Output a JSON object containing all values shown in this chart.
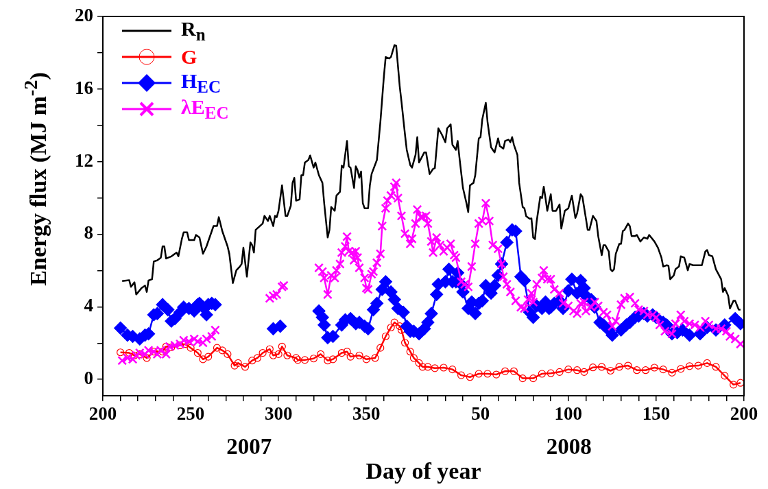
{
  "chart_data": {
    "type": "line",
    "xlabel": "Day of year",
    "ylabel": "Energy flux (MJ m$^{-2}$)",
    "annotations": [
      "2007",
      "2008"
    ],
    "xlim": [
      "2007-07-19",
      "2008-07-18"
    ],
    "xticks": [
      {
        "value": "2007-07-19",
        "label": "200"
      },
      {
        "value": "2007-07-29",
        "label": null
      },
      {
        "value": "2007-08-08",
        "label": null
      },
      {
        "value": "2007-08-18",
        "label": null
      },
      {
        "value": "2007-08-28",
        "label": null
      },
      {
        "value": "2007-09-07",
        "label": "250"
      },
      {
        "value": "2007-09-17",
        "label": null
      },
      {
        "value": "2007-09-27",
        "label": null
      },
      {
        "value": "2007-10-07",
        "label": null
      },
      {
        "value": "2007-10-17",
        "label": null
      },
      {
        "value": "2007-10-27",
        "label": "300"
      },
      {
        "value": "2007-11-06",
        "label": null
      },
      {
        "value": "2007-11-16",
        "label": null
      },
      {
        "value": "2007-11-26",
        "label": null
      },
      {
        "value": "2007-12-06",
        "label": null
      },
      {
        "value": "2007-12-16",
        "label": "350"
      },
      {
        "value": "2007-12-26",
        "label": null
      },
      {
        "value": "2008-01-10",
        "label": null
      },
      {
        "value": "2008-01-20",
        "label": null
      },
      {
        "value": "2008-01-30",
        "label": null
      },
      {
        "value": "2008-02-09",
        "label": null
      },
      {
        "value": "2008-02-19",
        "label": "50"
      },
      {
        "value": "2008-02-29",
        "label": null
      },
      {
        "value": "2008-03-10",
        "label": null
      },
      {
        "value": "2008-03-20",
        "label": null
      },
      {
        "value": "2008-03-30",
        "label": null
      },
      {
        "value": "2008-04-09",
        "label": "100"
      },
      {
        "value": "2008-04-19",
        "label": null
      },
      {
        "value": "2008-04-29",
        "label": null
      },
      {
        "value": "2008-05-09",
        "label": null
      },
      {
        "value": "2008-05-19",
        "label": null
      },
      {
        "value": "2008-05-29",
        "label": "150"
      },
      {
        "value": "2008-06-08",
        "label": null
      },
      {
        "value": "2008-06-18",
        "label": null
      },
      {
        "value": "2008-06-28",
        "label": null
      },
      {
        "value": "2008-07-08",
        "label": null
      },
      {
        "value": "2008-07-18",
        "label": "200"
      }
    ],
    "ylim": [
      -0.9,
      20
    ],
    "yticks": [
      0,
      {
        "value": 2,
        "label": null
      },
      4,
      {
        "value": 6,
        "label": null
      },
      8,
      {
        "value": 10,
        "label": null
      },
      12,
      {
        "value": 14,
        "label": null
      },
      16,
      {
        "value": 18,
        "label": null
      },
      20
    ],
    "grid": false,
    "legend": "top left",
    "series": [
      {
        "name": "R$_{n}$",
        "color": "#000000",
        "marker": "none",
        "x": [
          "2007-07-30",
          "2007-08-03",
          "2007-08-04",
          "2007-08-06",
          "2007-08-07",
          "2007-08-10",
          "2007-08-12",
          "2007-08-13",
          "2007-08-14",
          "2007-08-16",
          "2007-08-17",
          "2007-08-19",
          "2007-08-21",
          "2007-08-22",
          "2007-08-23",
          "2007-08-24",
          "2007-08-27",
          "2007-08-30",
          "2007-08-31",
          "2007-09-02",
          "2007-09-03",
          "2007-09-05",
          "2007-09-06",
          "2007-09-09",
          "2007-09-10",
          "2007-09-12",
          "2007-09-14",
          "2007-09-16",
          "2007-09-19",
          "2007-09-20",
          "2007-09-22",
          "2007-09-23",
          "2007-09-25",
          "2007-09-28",
          "2007-09-29",
          "2007-10-01",
          "2007-10-03",
          "2007-10-05",
          "2007-10-06",
          "2007-10-07",
          "2007-10-09",
          "2007-10-11",
          "2007-10-12",
          "2007-10-13",
          "2007-10-14",
          "2007-10-18",
          "2007-10-19",
          "2007-10-21",
          "2007-10-22",
          "2007-10-24",
          "2007-10-25",
          "2007-10-26",
          "2007-10-27",
          "2007-10-29",
          "2007-10-31",
          "2007-11-01",
          "2007-11-03",
          "2007-11-04",
          "2007-11-05",
          "2007-11-06",
          "2007-11-08",
          "2007-11-09",
          "2007-11-10",
          "2007-11-11",
          "2007-11-13",
          "2007-11-14",
          "2007-11-16",
          "2007-11-17",
          "2007-11-19",
          "2007-11-21",
          "2007-11-22",
          "2007-11-24",
          "2007-11-25",
          "2007-11-26",
          "2007-11-28",
          "2007-11-29",
          "2007-12-01",
          "2007-12-02",
          "2007-12-03",
          "2007-12-05",
          "2007-12-06",
          "2007-12-07",
          "2007-12-09",
          "2007-12-10",
          "2007-12-11",
          "2007-12-12",
          "2007-12-13",
          "2007-12-14",
          "2007-12-15",
          "2007-12-17",
          "2007-12-18",
          "2007-12-19",
          "2007-12-22",
          "2007-12-24",
          "2007-12-26",
          "2007-12-27",
          "2007-12-29",
          "2007-12-30",
          "2008-01-01",
          "2008-01-02",
          "2008-01-04",
          "2008-01-05",
          "2008-01-07",
          "2008-01-08",
          "2008-01-10",
          "2008-01-11",
          "2008-01-13",
          "2008-01-14",
          "2008-01-15",
          "2008-01-18",
          "2008-01-19",
          "2008-01-21",
          "2008-01-23",
          "2008-01-24",
          "2008-01-26",
          "2008-01-28",
          "2008-01-30",
          "2008-01-31",
          "2008-02-02",
          "2008-02-03",
          "2008-02-05",
          "2008-02-06",
          "2008-02-07",
          "2008-02-09",
          "2008-02-11",
          "2008-02-12",
          "2008-02-13",
          "2008-02-15",
          "2008-02-16",
          "2008-02-18",
          "2008-02-19",
          "2008-02-20",
          "2008-02-22",
          "2008-02-23",
          "2008-02-25",
          "2008-02-27",
          "2008-02-29",
          "2008-03-01",
          "2008-03-03",
          "2008-03-04",
          "2008-03-06",
          "2008-03-07",
          "2008-03-08",
          "2008-03-09",
          "2008-03-11",
          "2008-03-12",
          "2008-03-14",
          "2008-03-15",
          "2008-03-16",
          "2008-03-18",
          "2008-03-19",
          "2008-03-20",
          "2008-03-21",
          "2008-03-22",
          "2008-03-24",
          "2008-03-25",
          "2008-03-26",
          "2008-03-27",
          "2008-03-28",
          "2008-03-30",
          "2008-03-31",
          "2008-04-02",
          "2008-04-04",
          "2008-04-05",
          "2008-04-07",
          "2008-04-09",
          "2008-04-11",
          "2008-04-13",
          "2008-04-14",
          "2008-04-16",
          "2008-04-17",
          "2008-04-19",
          "2008-04-20",
          "2008-04-21",
          "2008-04-23",
          "2008-04-25",
          "2008-04-26",
          "2008-04-28",
          "2008-04-29",
          "2008-04-30",
          "2008-05-02",
          "2008-05-03",
          "2008-05-04",
          "2008-05-05",
          "2008-05-06",
          "2008-05-08",
          "2008-05-09",
          "2008-05-10",
          "2008-05-11",
          "2008-05-13",
          "2008-05-14",
          "2008-05-15",
          "2008-05-17",
          "2008-05-18",
          "2008-05-20",
          "2008-05-22",
          "2008-05-24",
          "2008-05-25",
          "2008-05-28",
          "2008-05-30",
          "2008-06-01",
          "2008-06-02",
          "2008-06-04",
          "2008-06-05",
          "2008-06-06",
          "2008-06-08",
          "2008-06-09",
          "2008-06-11",
          "2008-06-12",
          "2008-06-14",
          "2008-06-16",
          "2008-06-17",
          "2008-06-19",
          "2008-06-24",
          "2008-06-26",
          "2008-06-27",
          "2008-06-28",
          "2008-06-30",
          "2008-07-02",
          "2008-07-05",
          "2008-07-06",
          "2008-07-07",
          "2008-07-09",
          "2008-07-10",
          "2008-07-12",
          "2008-07-13",
          "2008-07-15",
          "2008-07-16"
        ],
        "values": [
          5.42,
          5.47,
          5.1,
          5.35,
          4.68,
          5.03,
          5.17,
          4.82,
          5.45,
          5.52,
          6.5,
          6.56,
          6.71,
          7.33,
          7.33,
          6.66,
          6.78,
          6.99,
          6.78,
          7.75,
          8.1,
          8.1,
          7.68,
          7.68,
          7.96,
          7.82,
          6.92,
          7.33,
          8.17,
          8.45,
          8.45,
          8.94,
          8.17,
          7.33,
          6.92,
          5.31,
          6.01,
          6.22,
          6.36,
          7.26,
          5.66,
          7.55,
          7.4,
          6.99,
          8.24,
          8.59,
          9.01,
          8.73,
          9.01,
          8.45,
          9.01,
          8.94,
          9.29,
          10.69,
          9.01,
          9.01,
          9.57,
          10.83,
          11.11,
          9.85,
          9.92,
          11.25,
          11.25,
          11.95,
          12.09,
          12.34,
          11.67,
          11.95,
          11.25,
          10.83,
          9.71,
          7.82,
          8.24,
          9.5,
          9.29,
          10.13,
          10.34,
          11.78,
          11.67,
          13.14,
          11.74,
          11.67,
          10.55,
          11.74,
          11.53,
          11.11,
          11.46,
          9.71,
          9.43,
          9.43,
          10.69,
          11.32,
          12.09,
          14.19,
          16.71,
          17.76,
          17.69,
          17.76,
          18.42,
          18.39,
          16.15,
          15.31,
          13.49,
          12.65,
          11.81,
          11.67,
          12.37,
          13.35,
          11.95,
          12.51,
          12.51,
          11.32,
          11.6,
          11.64,
          13.84,
          13.49,
          13.07,
          13.84,
          14.05,
          12.93,
          12.65,
          13.14,
          12.23,
          10.55,
          9.71,
          9.22,
          10.69,
          10.83,
          11.25,
          13.28,
          13.35,
          14.33,
          15.24,
          14.19,
          12.79,
          12.51,
          13.28,
          12.86,
          12.72,
          13.14,
          13.21,
          13.07,
          13.35,
          12.93,
          12.37,
          10.83,
          9.5,
          9.43,
          8.99,
          8.85,
          8.87,
          7.82,
          7.73,
          8.73,
          10.06,
          9.99,
          10.62,
          9.99,
          9.29,
          10.2,
          9.29,
          9.29,
          9.64,
          8.31,
          9.29,
          9.43,
          10.13,
          8.9,
          9.15,
          10.2,
          10.06,
          8.87,
          8.24,
          8.24,
          9.01,
          8.73,
          7.9,
          6.85,
          7.4,
          7.4,
          7.05,
          6.07,
          5.96,
          6.07,
          6.92,
          7.47,
          7.47,
          8.17,
          8.24,
          8.59,
          8.45,
          7.9,
          7.9,
          7.96,
          7.6,
          7.82,
          7.75,
          7.96,
          7.6,
          7.26,
          6.71,
          6.22,
          6.29,
          6.26,
          5.52,
          5.73,
          6.07,
          6.22,
          6.78,
          6.71,
          6.01,
          6.36,
          6.29,
          6.29,
          7.05,
          7.13,
          6.85,
          6.78,
          6.07,
          5.52,
          4.82,
          5.03,
          4.61,
          3.91,
          4.33,
          4.33,
          3.84,
          3.84
        ]
      },
      {
        "name": "G",
        "color": "#ff0000",
        "marker": "circle",
        "x": [
          "2007-07-29",
          "2007-08-03",
          "2007-08-06",
          "2007-08-09",
          "2007-08-13",
          "2007-08-17",
          "2007-08-22",
          "2007-08-24",
          "2007-08-27",
          "2007-09-01",
          "2007-09-04",
          "2007-09-07",
          "2007-09-11",
          "2007-09-14",
          "2007-09-17",
          "2007-09-22",
          "2007-09-25",
          "2007-09-28",
          "2007-10-02",
          "2007-10-04",
          "2007-10-08",
          "2007-10-12",
          "2007-10-15",
          "2007-10-18",
          "2007-10-22",
          "2007-10-24",
          "2007-10-27",
          "2007-10-29",
          "2007-11-01",
          "2007-11-06",
          "2007-11-07",
          "2007-11-11",
          "2007-11-16",
          "2007-11-20",
          "2007-11-24",
          "2007-11-27",
          "2007-12-02",
          "2007-12-05",
          "2007-12-07",
          "2007-12-12",
          "2007-12-16",
          "2007-12-21",
          "2007-12-24",
          "2007-12-27",
          "2007-12-30",
          "2008-01-01",
          "2008-01-04",
          "2008-01-05",
          "2008-01-07",
          "2008-01-10",
          "2008-01-12",
          "2008-01-15",
          "2008-01-17",
          "2008-01-20",
          "2008-01-24",
          "2008-01-29",
          "2008-02-03",
          "2008-02-08",
          "2008-02-13",
          "2008-02-18",
          "2008-02-23",
          "2008-02-28",
          "2008-03-04",
          "2008-03-09",
          "2008-03-14",
          "2008-03-20",
          "2008-03-25",
          "2008-03-30",
          "2008-04-04",
          "2008-04-09",
          "2008-04-14",
          "2008-04-18",
          "2008-04-23",
          "2008-04-28",
          "2008-05-03",
          "2008-05-08",
          "2008-05-13",
          "2008-05-18",
          "2008-05-23",
          "2008-05-28",
          "2008-06-02",
          "2008-06-07",
          "2008-06-12",
          "2008-06-17",
          "2008-06-22",
          "2008-06-27",
          "2008-07-02",
          "2008-07-07",
          "2008-07-12",
          "2008-07-16"
        ],
        "values": [
          1.49,
          1.46,
          1.32,
          1.39,
          1.18,
          1.53,
          1.53,
          1.81,
          1.77,
          1.88,
          1.95,
          1.74,
          1.46,
          1.11,
          1.25,
          1.74,
          1.6,
          1.39,
          0.76,
          0.9,
          0.69,
          1.04,
          1.18,
          1.46,
          1.67,
          1.32,
          1.39,
          1.81,
          1.32,
          1.18,
          1.07,
          1.07,
          1.15,
          1.39,
          1.04,
          1.11,
          1.46,
          1.53,
          1.25,
          1.32,
          1.11,
          1.18,
          1.74,
          2.37,
          2.86,
          3.14,
          2.93,
          2.72,
          2.02,
          1.53,
          1.18,
          0.9,
          0.69,
          0.69,
          0.62,
          0.65,
          0.55,
          0.23,
          0.13,
          0.31,
          0.31,
          0.27,
          0.45,
          0.45,
          0.06,
          0.06,
          0.31,
          0.34,
          0.41,
          0.55,
          0.51,
          0.41,
          0.66,
          0.69,
          0.48,
          0.69,
          0.76,
          0.51,
          0.51,
          0.65,
          0.55,
          0.37,
          0.58,
          0.73,
          0.76,
          0.9,
          0.69,
          0.2,
          -0.29,
          -0.19
        ]
      },
      {
        "name": "H$_{EC}$",
        "color": "#0000ff",
        "marker": "diamond",
        "x": [
          "2007-07-29",
          "2007-08-02",
          "2007-08-05",
          "2007-08-09",
          "2007-08-12",
          "2007-08-14",
          "2007-08-17",
          "2007-08-19",
          "2007-08-22",
          "2007-08-25",
          "2007-08-27",
          "2007-08-29",
          "2007-09-01",
          "2007-09-03",
          "2007-09-06",
          "2007-09-09",
          "2007-09-11",
          "2007-09-12",
          "2007-09-14",
          "2007-09-16",
          "2007-09-17",
          "2007-09-19",
          "2007-09-21",
          "2007-10-07",
          "2007-10-24",
          "2007-10-28",
          "2007-11-08",
          "2007-11-19",
          "2007-11-21",
          "2007-11-22",
          "2007-11-24",
          "2007-11-27",
          "2007-12-02",
          "2007-12-04",
          "2007-12-07",
          "2007-12-10",
          "2007-12-12",
          "2007-12-15",
          "2007-12-17",
          "2007-12-20",
          "2007-12-22",
          "2007-12-25",
          "2007-12-27",
          "2007-12-30",
          "2008-01-01",
          "2008-01-03",
          "2008-01-06",
          "2008-01-08",
          "2008-01-10",
          "2008-01-12",
          "2008-01-15",
          "2008-01-18",
          "2008-01-20",
          "2008-01-22",
          "2008-01-25",
          "2008-01-26",
          "2008-01-30",
          "2008-02-01",
          "2008-02-03",
          "2008-02-05",
          "2008-02-06",
          "2008-02-08",
          "2008-02-09",
          "2008-02-12",
          "2008-02-14",
          "2008-02-16",
          "2008-02-18",
          "2008-02-20",
          "2008-02-22",
          "2008-02-25",
          "2008-02-27",
          "2008-02-29",
          "2008-03-02",
          "2008-03-05",
          "2008-03-08",
          "2008-03-10",
          "2008-03-13",
          "2008-03-15",
          "2008-03-18",
          "2008-03-20",
          "2008-03-22",
          "2008-03-25",
          "2008-03-27",
          "2008-03-29",
          "2008-03-30",
          "2008-04-01",
          "2008-04-04",
          "2008-04-06",
          "2008-04-09",
          "2008-04-11",
          "2008-04-14",
          "2008-04-16",
          "2008-04-18",
          "2008-04-19",
          "2008-04-22",
          "2008-04-24",
          "2008-04-27",
          "2008-04-29",
          "2008-05-02",
          "2008-05-04",
          "2008-05-09",
          "2008-05-12",
          "2008-05-14",
          "2008-05-17",
          "2008-05-19",
          "2008-05-22",
          "2008-05-24",
          "2008-05-27",
          "2008-05-29",
          "2008-06-02",
          "2008-06-04",
          "2008-06-07",
          "2008-06-10",
          "2008-06-13",
          "2008-06-17",
          "2008-06-23",
          "2008-06-27",
          "2008-07-02",
          "2008-07-07",
          "2008-07-13",
          "2008-07-16"
        ],
        "values": [
          2.83,
          2.44,
          2.37,
          2.23,
          2.44,
          2.51,
          3.56,
          3.63,
          4.12,
          3.84,
          3.21,
          3.35,
          3.7,
          3.98,
          3.91,
          3.77,
          4.12,
          4.19,
          3.98,
          3.56,
          4.12,
          4.19,
          4.12,
          null,
          2.79,
          2.93,
          null,
          3.77,
          3.42,
          3,
          2.3,
          2.37,
          3,
          3.28,
          3.35,
          3.07,
          3.14,
          2.93,
          2.79,
          3.84,
          4.19,
          4.96,
          5.38,
          4.82,
          4.4,
          3.91,
          3.7,
          2.93,
          2.65,
          2.65,
          2.51,
          2.79,
          3.14,
          3.63,
          4.68,
          5.24,
          5.38,
          6.07,
          5.38,
          5.38,
          5.87,
          5.24,
          4.82,
          3.91,
          4.26,
          3.63,
          4.19,
          4.33,
          5.17,
          4.75,
          5.17,
          5.73,
          6.36,
          7.55,
          8.24,
          8.17,
          5.66,
          5.45,
          3.7,
          3.42,
          4.05,
          3.91,
          4.26,
          3.91,
          3.98,
          4.19,
          4.33,
          3.91,
          4.89,
          5.52,
          4.75,
          5.45,
          5.03,
          4.61,
          4.4,
          3.98,
          3.14,
          3,
          2.72,
          2.44,
          2.72,
          3,
          3.14,
          3.42,
          3.49,
          3.63,
          3.49,
          3.56,
          3.42,
          3.14,
          3,
          2.51,
          2.58,
          2.72,
          2.44,
          2.51,
          2.86,
          2.72,
          3,
          3.35,
          3.07
        ]
      },
      {
        "name": "λE$_{EC}$",
        "color": "#ff00ff",
        "marker": "cross",
        "x": [
          "2007-07-30",
          "2007-08-02",
          "2007-08-05",
          "2007-08-07",
          "2007-08-09",
          "2007-08-12",
          "2007-08-14",
          "2007-08-17",
          "2007-08-19",
          "2007-08-21",
          "2007-08-24",
          "2007-08-26",
          "2007-08-29",
          "2007-09-01",
          "2007-09-03",
          "2007-09-06",
          "2007-09-09",
          "2007-09-11",
          "2007-09-14",
          "2007-09-16",
          "2007-09-19",
          "2007-09-21",
          "2007-10-07",
          "2007-10-22",
          "2007-10-24",
          "2007-10-26",
          "2007-10-29",
          "2007-10-30",
          "2007-11-08",
          "2007-11-19",
          "2007-11-21",
          "2007-11-22",
          "2007-11-24",
          "2007-11-26",
          "2007-11-28",
          "2007-11-29",
          "2007-12-01",
          "2007-12-02",
          "2007-12-04",
          "2007-12-05",
          "2007-12-06",
          "2007-12-08",
          "2007-12-09",
          "2007-12-10",
          "2007-12-11",
          "2007-12-12",
          "2007-12-15",
          "2007-12-16",
          "2007-12-17",
          "2007-12-19",
          "2007-12-20",
          "2007-12-22",
          "2007-12-24",
          "2007-12-25",
          "2007-12-27",
          "2007-12-28",
          "2007-12-30",
          "2008-01-01",
          "2008-01-02",
          "2008-01-03",
          "2008-01-05",
          "2008-01-07",
          "2008-01-10",
          "2008-01-11",
          "2008-01-13",
          "2008-01-14",
          "2008-01-16",
          "2008-01-17",
          "2008-01-19",
          "2008-01-20",
          "2008-01-22",
          "2008-01-23",
          "2008-01-25",
          "2008-01-27",
          "2008-01-29",
          "2008-01-31",
          "2008-02-02",
          "2008-02-04",
          "2008-02-05",
          "2008-02-08",
          "2008-02-10",
          "2008-02-12",
          "2008-02-14",
          "2008-02-16",
          "2008-02-18",
          "2008-02-20",
          "2008-02-22",
          "2008-02-24",
          "2008-02-26",
          "2008-02-29",
          "2008-03-02",
          "2008-03-03",
          "2008-03-05",
          "2008-03-07",
          "2008-03-10",
          "2008-03-13",
          "2008-03-15",
          "2008-03-17",
          "2008-03-19",
          "2008-03-20",
          "2008-03-22",
          "2008-03-25",
          "2008-03-26",
          "2008-03-28",
          "2008-03-30",
          "2008-04-01",
          "2008-04-04",
          "2008-04-06",
          "2008-04-09",
          "2008-04-12",
          "2008-04-14",
          "2008-04-16",
          "2008-04-18",
          "2008-04-19",
          "2008-04-22",
          "2008-04-24",
          "2008-04-26",
          "2008-04-29",
          "2008-05-01",
          "2008-05-04",
          "2008-05-06",
          "2008-05-09",
          "2008-05-11",
          "2008-05-14",
          "2008-05-17",
          "2008-05-19",
          "2008-05-22",
          "2008-05-24",
          "2008-05-27",
          "2008-05-29",
          "2008-05-31",
          "2008-06-03",
          "2008-06-07",
          "2008-06-09",
          "2008-06-12",
          "2008-06-14",
          "2008-06-17",
          "2008-06-20",
          "2008-06-23",
          "2008-06-26",
          "2008-06-28",
          "2008-07-02",
          "2008-07-05",
          "2008-07-08",
          "2008-07-10",
          "2008-07-13",
          "2008-07-16"
        ],
        "values": [
          1.04,
          1.18,
          1.11,
          1.32,
          1.46,
          1.39,
          1.6,
          1.53,
          1.39,
          1.6,
          1.39,
          1.81,
          1.88,
          1.95,
          2.16,
          2.09,
          2.23,
          2.09,
          2.02,
          2.23,
          2.37,
          2.72,
          null,
          4.47,
          4.61,
          4.68,
          5.1,
          5.17,
          null,
          6.15,
          5.94,
          5.59,
          4.68,
          5.73,
          5.59,
          6.01,
          6.36,
          6.99,
          7.33,
          7.87,
          7.06,
          6.99,
          6.57,
          7.06,
          6.71,
          6.15,
          5.59,
          5.03,
          4.96,
          5.8,
          5.94,
          6.43,
          6.92,
          8.45,
          9.43,
          9.85,
          10.13,
          10.62,
          10.83,
          9.99,
          9.01,
          8.03,
          7.47,
          7.75,
          8.59,
          9.36,
          8.94,
          8.94,
          9.01,
          8.59,
          7.6,
          6.99,
          7.82,
          7.4,
          7.06,
          7.26,
          7.47,
          6.85,
          6.71,
          5.38,
          5.24,
          5.1,
          6.22,
          7.47,
          8.59,
          8.73,
          9.71,
          8.73,
          7.4,
          7.2,
          6.36,
          5.66,
          5.24,
          4.82,
          4.33,
          3.98,
          3.91,
          4.4,
          4.75,
          4.26,
          5.24,
          5.59,
          6.01,
          5.52,
          5.52,
          4.96,
          4.75,
          4.19,
          4.05,
          3.77,
          3.63,
          4.19,
          4.26,
          3.77,
          3.98,
          4.26,
          4.05,
          3.7,
          3.56,
          2.93,
          3.21,
          4.12,
          4.47,
          4.54,
          4.19,
          3.84,
          3.77,
          3.56,
          3.56,
          3.42,
          3,
          2.65,
          2.51,
          3.07,
          3.56,
          3.21,
          3.07,
          3,
          2.86,
          3.21,
          3,
          2.79,
          2.79,
          2.65,
          2.37,
          2.23,
          1.95
        ]
      }
    ]
  }
}
